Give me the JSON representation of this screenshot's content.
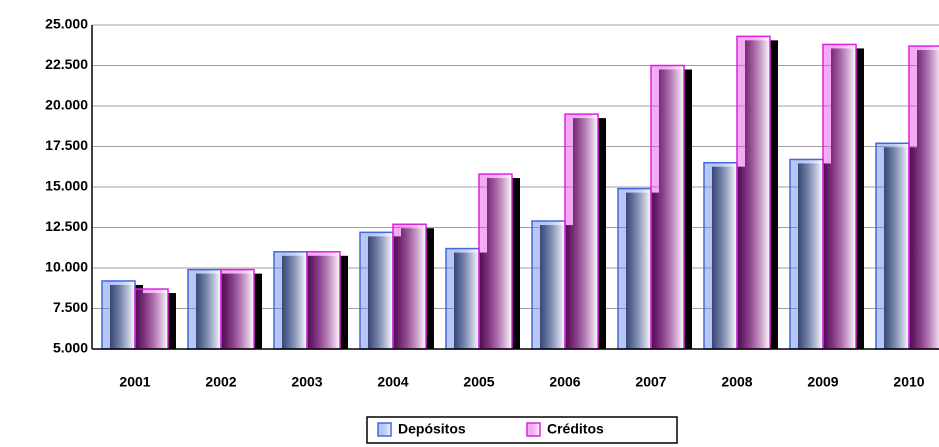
{
  "chart_data": {
    "type": "bar",
    "categories": [
      "2001",
      "2002",
      "2003",
      "2004",
      "2005",
      "2006",
      "2007",
      "2008",
      "2009",
      "2010"
    ],
    "series": [
      {
        "name": "Depósitos",
        "color": "#4169e1",
        "values": [
          9200,
          9900,
          11000,
          12200,
          11200,
          12900,
          14900,
          16500,
          16700,
          17700
        ]
      },
      {
        "name": "Créditos",
        "color": "#e020e0",
        "values": [
          8700,
          9900,
          11000,
          12700,
          15800,
          19500,
          22500,
          24300,
          23800,
          23700
        ]
      }
    ],
    "ylim": [
      5000,
      25000
    ],
    "yticks": [
      {
        "value": 5000,
        "label": "5.000"
      },
      {
        "value": 7500,
        "label": "7.500"
      },
      {
        "value": 10000,
        "label": "10.000"
      },
      {
        "value": 12500,
        "label": "12.500"
      },
      {
        "value": 15000,
        "label": "15.000"
      },
      {
        "value": 17500,
        "label": "17.500"
      },
      {
        "value": 20000,
        "label": "20.000"
      },
      {
        "value": 22500,
        "label": "22.500"
      },
      {
        "value": 25000,
        "label": "25.000"
      }
    ],
    "grid": true,
    "legend": "bottom"
  }
}
